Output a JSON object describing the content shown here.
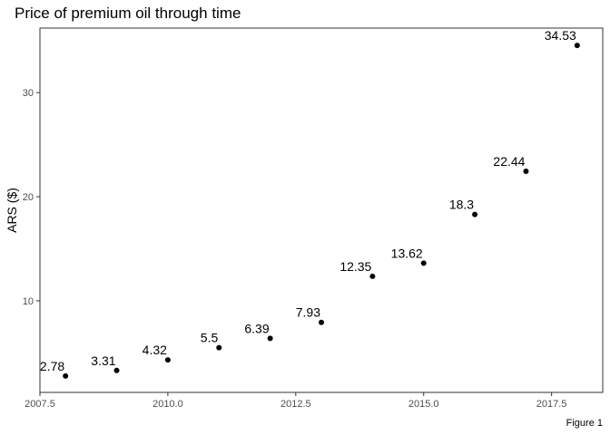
{
  "chart_data": {
    "type": "line",
    "title": "Price of premium oil through time",
    "xlabel": "",
    "ylabel": "ARS ($)",
    "caption": "Figure 1",
    "xlim": [
      2007.5,
      2018.5
    ],
    "ylim": [
      1.2,
      36.2
    ],
    "x_ticks": [
      2007.5,
      2010.0,
      2012.5,
      2015.0,
      2017.5
    ],
    "x_tick_labels": [
      "2007.5",
      "2010.0",
      "2012.5",
      "2015.0",
      "2017.5"
    ],
    "y_ticks": [
      10,
      20,
      30
    ],
    "y_tick_labels": [
      "10",
      "20",
      "30"
    ],
    "grid": true,
    "line_style": "dashed",
    "line_color": "#0000ff",
    "point_color": "#000000",
    "x": [
      2008,
      2009,
      2010,
      2011,
      2012,
      2013,
      2014,
      2015,
      2016,
      2017,
      2018
    ],
    "values": [
      2.78,
      3.31,
      4.32,
      5.5,
      6.39,
      7.93,
      12.35,
      13.62,
      18.3,
      22.44,
      34.53
    ],
    "data_labels": [
      "2.78",
      "3.31",
      "4.32",
      "5.5",
      "6.39",
      "7.93",
      "12.35",
      "13.62",
      "18.3",
      "22.44",
      "34.53"
    ]
  }
}
